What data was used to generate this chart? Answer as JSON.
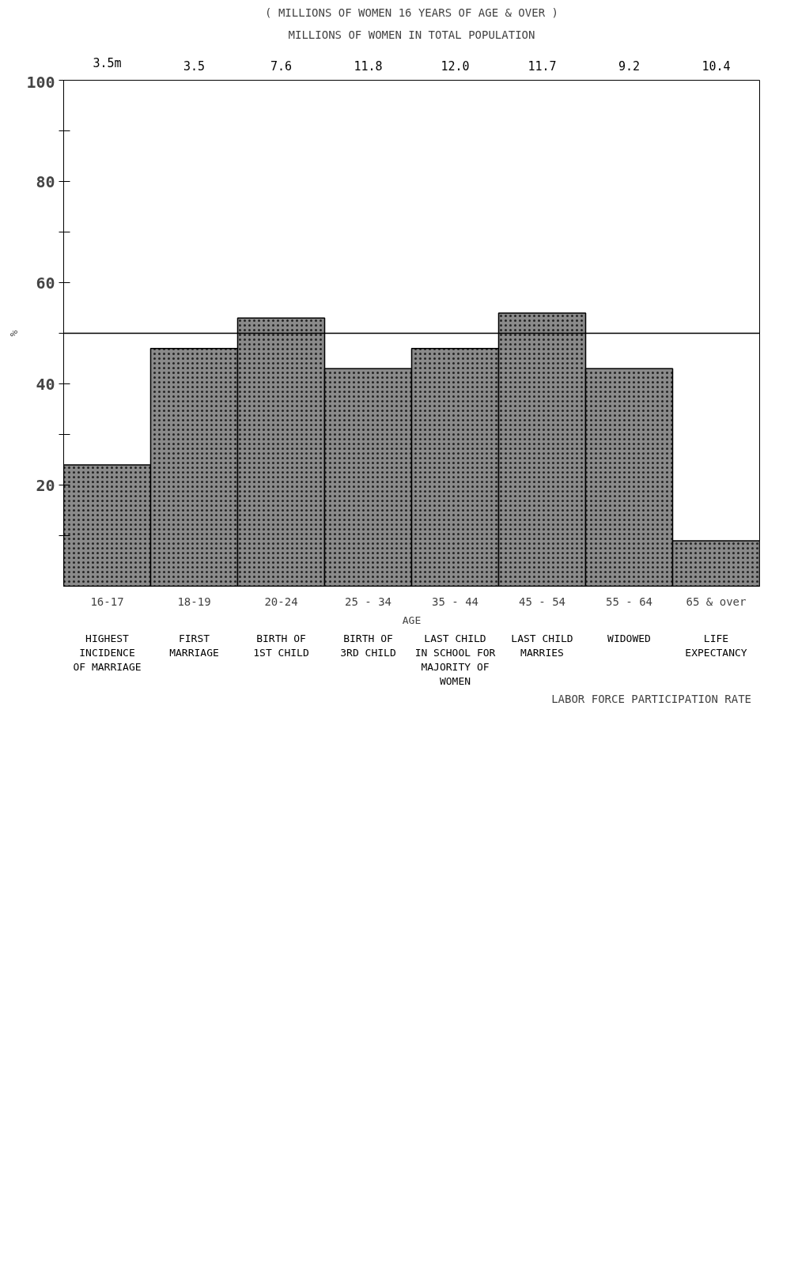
{
  "chart_data": {
    "type": "bar",
    "title": "( MILLIONS OF WOMEN 16 YEARS OF AGE & OVER )",
    "subtitle": "MILLIONS OF WOMEN IN TOTAL POPULATION",
    "xlabel": "AGE",
    "ylabel": "%",
    "categories": [
      "16-17",
      "18-19",
      "20-24",
      "25 - 34",
      "35 - 44",
      "45 - 54",
      "55 - 64",
      "65 & over"
    ],
    "ylim": [
      0,
      100
    ],
    "yticks": [
      {
        "value": 10,
        "label": null
      },
      20,
      {
        "value": 30,
        "label": null
      },
      40,
      {
        "value": 50,
        "label": null
      },
      60,
      {
        "value": 70,
        "label": null
      },
      80,
      {
        "value": 90,
        "label": null
      },
      100
    ],
    "series": [
      {
        "name": "LABOR FORCE PARTICIPATION RATE",
        "color": "#8a8a8a",
        "values": [
          24,
          47,
          53,
          43,
          47,
          54,
          43,
          9
        ]
      }
    ],
    "ref_lines": [
      {
        "axis": "y",
        "value": 50,
        "label": null
      }
    ],
    "annotations": [
      "3.5m",
      "3.5",
      "7.6",
      "11.8",
      "12.0",
      "11.7",
      "9.2",
      "10.4",
      "HIGHEST\nINCIDENCE\nOF MARRIAGE",
      "FIRST\nMARRIAGE",
      "BIRTH OF\n1ST CHILD",
      "BIRTH OF\n3RD CHILD",
      "LAST CHILD\nIN SCHOOL FOR\nMAJORITY OF\nWOMEN",
      "LAST CHILD\nMARRIES",
      "WIDOWED",
      "LIFE\nEXPECTANCY"
    ],
    "legend": "bottom right",
    "grid": false
  }
}
